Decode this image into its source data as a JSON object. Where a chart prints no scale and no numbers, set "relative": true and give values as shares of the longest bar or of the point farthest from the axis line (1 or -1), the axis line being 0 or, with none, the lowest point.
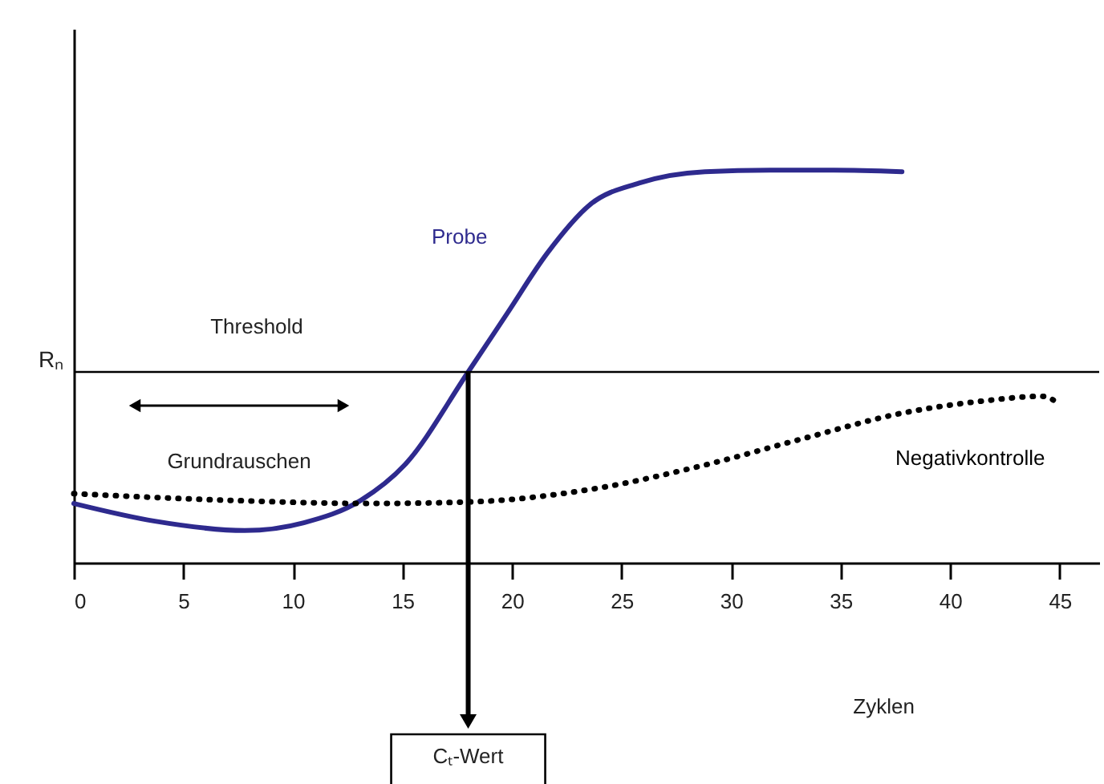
{
  "chart_data": {
    "type": "line",
    "relative": true,
    "xlabel": "Zyklen",
    "ylabel": "Rₙ",
    "x": [
      0,
      3.7,
      7.8,
      10.5,
      13.1,
      15.1,
      18.0,
      19.8,
      21.6,
      23.6,
      25.8,
      28.8,
      31.8,
      34.7,
      37.8
    ],
    "xlim": [
      0,
      46.8
    ],
    "xticks": [
      0,
      5,
      10,
      15,
      20,
      25,
      30,
      35,
      40,
      45
    ],
    "series": [
      {
        "name": "Probe",
        "color": "#2e2a8e",
        "line_style": "solid",
        "values": [
          0.151,
          0.106,
          0.082,
          0.102,
          0.159,
          0.249,
          0.486,
          0.637,
          0.788,
          0.914,
          0.967,
          0.996,
          1.0,
          1.0,
          0.996
        ]
      },
      {
        "name": "Negativkontrolle",
        "color": "#000000",
        "line_style": "dotted",
        "x": [
          0,
          7.1,
          13.5,
          18.1,
          23.7,
          28.8,
          33.4,
          37.7,
          41.5,
          44.2,
          45
        ],
        "values": [
          0.176,
          0.159,
          0.151,
          0.155,
          0.188,
          0.249,
          0.318,
          0.38,
          0.412,
          0.424,
          0.404
        ]
      }
    ],
    "ref_lines": [
      {
        "axis": "y",
        "value": 0.486,
        "label": "Threshold",
        "color": "#000000"
      },
      {
        "axis": "x",
        "value": 18.0,
        "label": "Cₜ-Wert",
        "color": "#000000"
      }
    ],
    "annotations": [
      "Grundrauschen"
    ],
    "grid": false
  }
}
